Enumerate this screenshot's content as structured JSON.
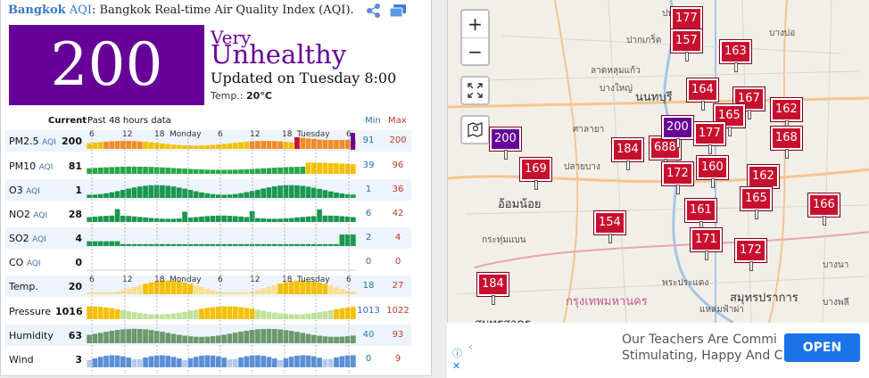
{
  "header": {
    "city": "Bangkok",
    "aqi_label": "AQI",
    "subtitle": ": Bangkok Real-time Air Quality Index (AQI).",
    "icons": [
      "share-icon",
      "cards-icon"
    ]
  },
  "summary": {
    "aqi_value": "200",
    "severity_line1": "Very",
    "severity_line2": "Unhealthy",
    "updated": "Updated on Tuesday 8:00",
    "temp_label": "Temp.:",
    "temp_value": "20°C",
    "color": "#660099"
  },
  "table": {
    "current_header": "Current",
    "history_header": "Past 48 hours data",
    "min_header": "Min",
    "max_header": "Max",
    "time_labels": [
      "6",
      "12",
      "18",
      "Monday",
      "6",
      "12",
      "18",
      "Tuesday",
      "6"
    ],
    "rows": [
      {
        "label": "PM2.5",
        "sub": "AQI",
        "current": "200",
        "min": "91",
        "max": "200"
      },
      {
        "label": "PM10",
        "sub": "AQI",
        "current": "81",
        "min": "39",
        "max": "96"
      },
      {
        "label": "O3",
        "sub": "AQI",
        "current": "1",
        "min": "1",
        "max": "36"
      },
      {
        "label": "NO2",
        "sub": "AQI",
        "current": "28",
        "min": "6",
        "max": "42"
      },
      {
        "label": "SO2",
        "sub": "AQI",
        "current": "4",
        "min": "2",
        "max": "4"
      },
      {
        "label": "CO",
        "sub": "AQI",
        "current": "0",
        "min": "0",
        "max": "0"
      },
      {
        "label": "Temp.",
        "sub": "",
        "current": "20",
        "min": "18",
        "max": "27"
      },
      {
        "label": "Pressure",
        "sub": "",
        "current": "1016",
        "min": "1013",
        "max": "1022"
      },
      {
        "label": "Humidity",
        "sub": "",
        "current": "63",
        "min": "40",
        "max": "93"
      },
      {
        "label": "Wind",
        "sub": "",
        "current": "3",
        "min": "0",
        "max": "9"
      }
    ]
  },
  "map": {
    "zoom_in": "+",
    "zoom_out": "−",
    "labels": [
      "อ้อมน้อย",
      "กระทุ่มแบน",
      "สมุทรสาคร",
      "กรุงเทพมหานคร",
      "สมุทรปราการ",
      "นนทบุรี",
      "ปากเกร็ด",
      "บางพลี",
      "ลาดหลุมแก้ว",
      "ปทุมธานี",
      "บางใหญ่",
      "ศาลายา",
      "ปลายบาง",
      "บางนา",
      "แหลมฟ้าผ่า",
      "บางบ่อ",
      "พระประแดง"
    ],
    "markers": [
      {
        "v": "200",
        "c": "#660099"
      },
      {
        "v": "169",
        "c": "#c8102e"
      },
      {
        "v": "184",
        "c": "#c8102e"
      },
      {
        "v": "154",
        "c": "#c8102e"
      },
      {
        "v": "177",
        "c": "#c8102e"
      },
      {
        "v": "157",
        "c": "#c8102e"
      },
      {
        "v": "163",
        "c": "#c8102e"
      },
      {
        "v": "164",
        "c": "#c8102e"
      },
      {
        "v": "167",
        "c": "#c8102e"
      },
      {
        "v": "165",
        "c": "#c8102e"
      },
      {
        "v": "162",
        "c": "#c8102e"
      },
      {
        "v": "168",
        "c": "#c8102e"
      },
      {
        "v": "688",
        "c": "#c8102e"
      },
      {
        "v": "177",
        "c": "#c8102e"
      },
      {
        "v": "172",
        "c": "#c8102e"
      },
      {
        "v": "160",
        "c": "#c8102e"
      },
      {
        "v": "162",
        "c": "#c8102e"
      },
      {
        "v": "165",
        "c": "#c8102e"
      },
      {
        "v": "161",
        "c": "#c8102e"
      },
      {
        "v": "171",
        "c": "#c8102e"
      },
      {
        "v": "172",
        "c": "#c8102e"
      },
      {
        "v": "166",
        "c": "#c8102e"
      },
      {
        "v": "200",
        "c": "#660099"
      },
      {
        "v": "184",
        "c": "#c8102e"
      }
    ]
  },
  "ad": {
    "line1": "Our Teachers Are Commi",
    "line2": "Stimulating, Happy And C",
    "button": "OPEN",
    "info_icon": "ⓘ",
    "close_icon": "✕"
  }
}
